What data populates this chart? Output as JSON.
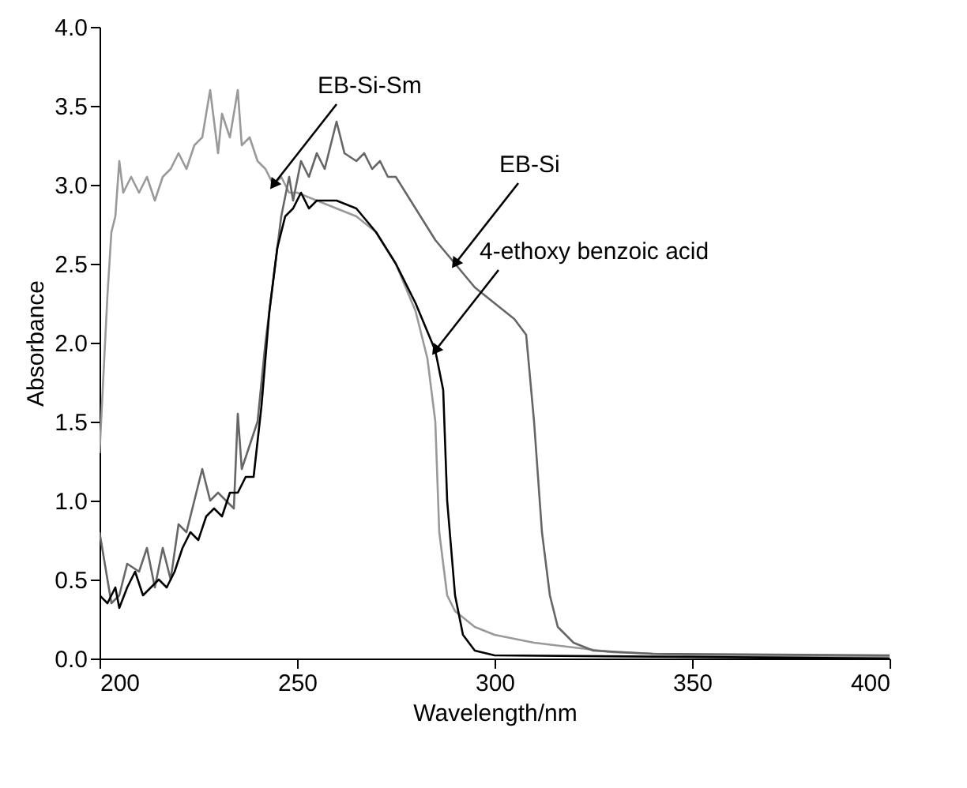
{
  "chart_data": {
    "type": "line",
    "xlabel": "Wavelength/nm",
    "ylabel": "Absorbance",
    "xlim": [
      200,
      400
    ],
    "xticks": [
      200,
      250,
      300,
      350,
      400
    ],
    "ylim": [
      0,
      4
    ],
    "yticks": [
      {
        "value": 0,
        "label": "0.0"
      },
      {
        "value": 0.5,
        "label": "0.5"
      },
      {
        "value": 1,
        "label": "1.0"
      },
      {
        "value": 1.5,
        "label": "1.5"
      },
      {
        "value": 2,
        "label": "2.0"
      },
      {
        "value": 2.5,
        "label": "2.5"
      },
      {
        "value": 3,
        "label": "3.0"
      },
      {
        "value": 3.5,
        "label": "3.5"
      },
      {
        "value": 4,
        "label": "4.0"
      }
    ],
    "grid": false,
    "legend": false,
    "marker": "none",
    "line_style": "solid",
    "series": [
      {
        "color": "#999999",
        "x": [
          200,
          202,
          203,
          204,
          205,
          206,
          208,
          210,
          212,
          214,
          216,
          218,
          220,
          222,
          224,
          226,
          228,
          230,
          231,
          233,
          235,
          236,
          238,
          240,
          242,
          244,
          246,
          248,
          250,
          255,
          260,
          265,
          270,
          275,
          280,
          283,
          285,
          286,
          288,
          290,
          295,
          300,
          310,
          320,
          330,
          350,
          400
        ],
        "values": [
          1.3,
          2.3,
          2.7,
          2.8,
          3.15,
          2.95,
          3.05,
          2.95,
          3.05,
          2.9,
          3.05,
          3.1,
          3.2,
          3.1,
          3.25,
          3.3,
          3.6,
          3.2,
          3.45,
          3.3,
          3.6,
          3.25,
          3.3,
          3.15,
          3.1,
          3.0,
          3.05,
          2.95,
          2.95,
          2.9,
          2.85,
          2.8,
          2.7,
          2.5,
          2.2,
          1.9,
          1.5,
          0.8,
          0.4,
          0.3,
          0.2,
          0.15,
          0.1,
          0.07,
          0.04,
          0.02,
          0.01
        ]
      },
      {
        "color": "#666666",
        "x": [
          200,
          203,
          205,
          207,
          210,
          212,
          214,
          216,
          218,
          220,
          222,
          224,
          226,
          228,
          230,
          232,
          234,
          235,
          236,
          238,
          240,
          242,
          244,
          246,
          248,
          249,
          251,
          253,
          255,
          257,
          259,
          260,
          262,
          265,
          267,
          269,
          271,
          273,
          275,
          280,
          285,
          290,
          295,
          300,
          305,
          308,
          310,
          312,
          314,
          316,
          320,
          325,
          340,
          400
        ],
        "values": [
          0.8,
          0.35,
          0.4,
          0.6,
          0.55,
          0.7,
          0.45,
          0.7,
          0.5,
          0.85,
          0.8,
          1.0,
          1.2,
          1.0,
          1.05,
          1.0,
          0.95,
          1.55,
          1.2,
          1.35,
          1.5,
          2.0,
          2.4,
          2.8,
          3.05,
          2.9,
          3.15,
          3.05,
          3.2,
          3.1,
          3.3,
          3.4,
          3.2,
          3.15,
          3.2,
          3.1,
          3.15,
          3.05,
          3.05,
          2.85,
          2.65,
          2.5,
          2.35,
          2.25,
          2.15,
          2.05,
          1.5,
          0.8,
          0.4,
          0.2,
          0.1,
          0.05,
          0.03,
          0.02
        ]
      },
      {
        "color": "#000000",
        "x": [
          200,
          202,
          204,
          205,
          207,
          209,
          211,
          213,
          215,
          217,
          219,
          221,
          223,
          225,
          227,
          229,
          231,
          233,
          235,
          237,
          239,
          241,
          243,
          245,
          247,
          249,
          251,
          253,
          255,
          260,
          265,
          270,
          275,
          280,
          285,
          287,
          288,
          290,
          292,
          295,
          300,
          400
        ],
        "values": [
          0.4,
          0.35,
          0.45,
          0.32,
          0.45,
          0.55,
          0.4,
          0.45,
          0.5,
          0.45,
          0.55,
          0.7,
          0.8,
          0.75,
          0.9,
          0.95,
          0.9,
          1.05,
          1.05,
          1.15,
          1.15,
          1.6,
          2.2,
          2.6,
          2.8,
          2.85,
          2.95,
          2.85,
          2.9,
          2.9,
          2.85,
          2.7,
          2.5,
          2.25,
          1.95,
          1.7,
          1.0,
          0.4,
          0.15,
          0.05,
          0.02,
          0.0
        ]
      }
    ],
    "annotations": [
      {
        "text": "EB-Si-Sm",
        "x": 244,
        "y": 3.0
      },
      {
        "text": "EB-Si",
        "x": 290,
        "y": 2.5
      },
      {
        "text": "4-ethoxy benzoic acid",
        "x": 285,
        "y": 1.95
      }
    ]
  }
}
